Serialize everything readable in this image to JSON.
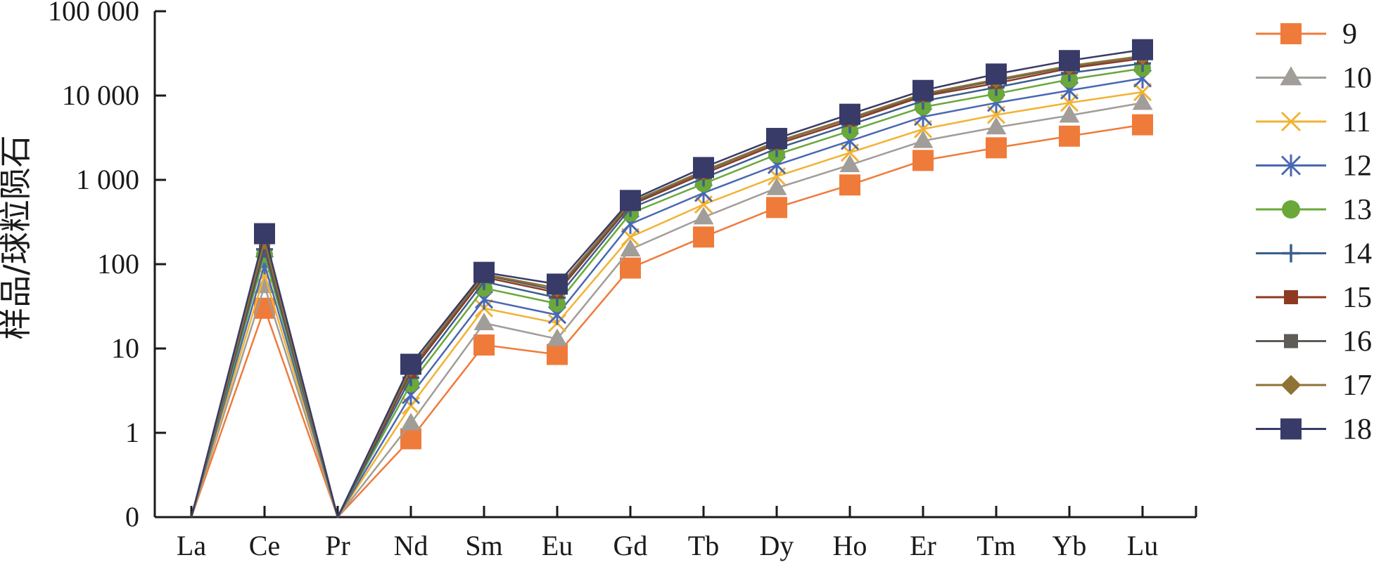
{
  "chart_data": {
    "type": "line",
    "ylabel": "样品/球粒陨石",
    "xlabel": "",
    "y_scale": "log",
    "ylim": [
      0.1,
      100000
    ],
    "y_ticks": [
      {
        "value": 0.1,
        "label": "0"
      },
      {
        "value": 1,
        "label": "1"
      },
      {
        "value": 10,
        "label": "10"
      },
      {
        "value": 100,
        "label": "100"
      },
      {
        "value": 1000,
        "label": "1 000"
      },
      {
        "value": 10000,
        "label": "10 000"
      },
      {
        "value": 100000,
        "label": "100 000"
      }
    ],
    "categories": [
      "La",
      "Ce",
      "Pr",
      "Nd",
      "Sm",
      "Eu",
      "Gd",
      "Tb",
      "Dy",
      "Ho",
      "Er",
      "Tm",
      "Yb",
      "Lu"
    ],
    "legend_position": "right",
    "grid": false,
    "series": [
      {
        "name": "9",
        "color": "#ef7b3a",
        "marker": "square",
        "values": [
          0.1,
          30,
          0.1,
          0.85,
          11,
          8.5,
          90,
          210,
          470,
          870,
          1700,
          2400,
          3300,
          4500
        ]
      },
      {
        "name": "10",
        "color": "#a19d98",
        "marker": "triangle",
        "values": [
          0.1,
          55,
          0.1,
          1.3,
          20,
          13,
          150,
          360,
          800,
          1500,
          2900,
          4200,
          5800,
          8200
        ]
      },
      {
        "name": "11",
        "color": "#f2b233",
        "marker": "x",
        "values": [
          0.1,
          75,
          0.1,
          2.1,
          30,
          20,
          210,
          510,
          1100,
          2100,
          4000,
          5900,
          8200,
          11000
        ]
      },
      {
        "name": "12",
        "color": "#4a68b2",
        "marker": "star",
        "values": [
          0.1,
          100,
          0.1,
          2.8,
          38,
          25,
          300,
          700,
          1500,
          2900,
          5600,
          8200,
          11500,
          16000
        ]
      },
      {
        "name": "13",
        "color": "#6aa83a",
        "marker": "circle",
        "values": [
          0.1,
          130,
          0.1,
          3.8,
          52,
          34,
          400,
          900,
          2000,
          3800,
          7300,
          10500,
          15500,
          21000
        ]
      },
      {
        "name": "14",
        "color": "#3a5f8c",
        "marker": "plus",
        "values": [
          0.1,
          150,
          0.1,
          4.5,
          62,
          40,
          460,
          1050,
          2350,
          4500,
          8600,
          12500,
          18500,
          24000
        ]
      },
      {
        "name": "15",
        "color": "#8e3a22",
        "marker": "square",
        "values": [
          0.1,
          170,
          0.1,
          5.2,
          70,
          46,
          500,
          1180,
          2650,
          5000,
          9800,
          14000,
          21000,
          27500
        ]
      },
      {
        "name": "16",
        "color": "#5f5b56",
        "marker": "square",
        "values": [
          0.1,
          180,
          0.1,
          5.6,
          74,
          49,
          520,
          1250,
          2800,
          5300,
          10200,
          15000,
          22000,
          29000
        ]
      },
      {
        "name": "17",
        "color": "#8f7235",
        "marker": "diamond",
        "values": [
          0.1,
          190,
          0.1,
          5.9,
          76,
          52,
          540,
          1280,
          2850,
          5400,
          10500,
          15500,
          22500,
          29500
        ]
      },
      {
        "name": "18",
        "color": "#383b68",
        "marker": "square",
        "values": [
          0.1,
          230,
          0.1,
          6.5,
          80,
          58,
          570,
          1400,
          3100,
          6000,
          11500,
          18000,
          26000,
          35000
        ]
      }
    ]
  }
}
